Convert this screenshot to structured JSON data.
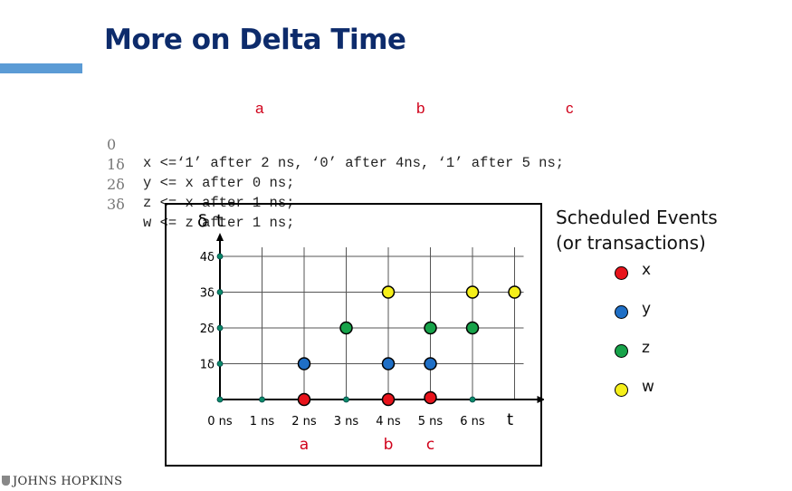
{
  "slide": {
    "title": "More on Delta Time",
    "logo_text": "JOHNS HOPKINS"
  },
  "code": {
    "markers": [
      "a",
      "b",
      "c"
    ],
    "lines": [
      {
        "index": "0",
        "text": "x <=‘1’ after 2 ns, ‘0’ after 4ns, ‘1’ after 5 ns;"
      },
      {
        "index": "1δ",
        "text": "y <= x after 0 ns;"
      },
      {
        "index": "2δ",
        "text": "z <= x after 1 ns;"
      },
      {
        "index": "3δ",
        "text": "w <= z after 1 ns;"
      }
    ]
  },
  "legend": {
    "title_lines": [
      "Scheduled Events",
      "(or transactions)"
    ],
    "items": [
      {
        "label": "x",
        "color": "#e8131b"
      },
      {
        "label": "y",
        "color": "#1f6fc6"
      },
      {
        "label": "z",
        "color": "#17a34a"
      },
      {
        "label": "w",
        "color": "#f5ef1a"
      }
    ]
  },
  "chart_data": {
    "type": "scatter",
    "ylabel": "δ",
    "xlabel": "t",
    "x_axis_label_end": "t",
    "x_ticks": [
      "0 ns",
      "1 ns",
      "2 ns",
      "3 ns",
      "4 ns",
      "5 ns",
      "6 ns"
    ],
    "x_tick_values": [
      0,
      1,
      2,
      3,
      4,
      5,
      6
    ],
    "y_ticks": [
      "1δ",
      "2δ",
      "3δ",
      "4δ"
    ],
    "y_tick_values": [
      1,
      2,
      3,
      4
    ],
    "xlim": [
      0,
      7
    ],
    "ylim": [
      0,
      4
    ],
    "grid": true,
    "x_markers": [
      {
        "label": "a",
        "x": 2
      },
      {
        "label": "b",
        "x": 4
      },
      {
        "label": "c",
        "x": 5
      }
    ],
    "series": [
      {
        "name": "x",
        "color": "#e8131b",
        "points": [
          [
            2,
            0
          ],
          [
            4,
            0
          ],
          [
            5,
            0
          ]
        ]
      },
      {
        "name": "y",
        "color": "#1f6fc6",
        "points": [
          [
            2,
            1
          ],
          [
            4,
            1
          ],
          [
            5,
            1
          ]
        ]
      },
      {
        "name": "z",
        "color": "#17a34a",
        "points": [
          [
            3,
            2
          ],
          [
            5,
            2
          ],
          [
            6,
            2
          ]
        ]
      },
      {
        "name": "w",
        "color": "#f5ef1a",
        "points": [
          [
            4,
            3
          ],
          [
            6,
            3
          ],
          [
            7,
            3
          ]
        ]
      }
    ]
  }
}
